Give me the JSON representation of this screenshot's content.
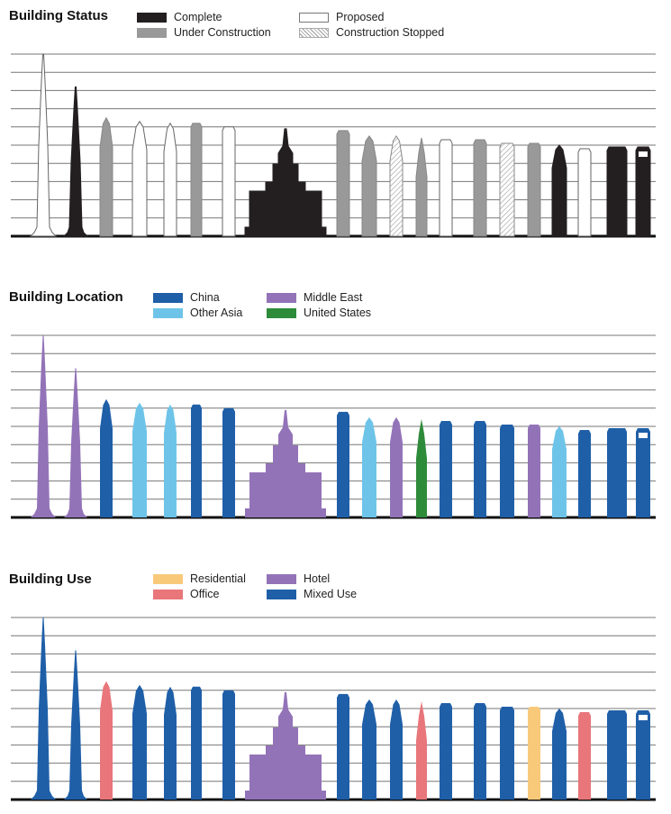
{
  "panels": [
    {
      "title": "Building Status",
      "legend": [
        {
          "label": "Complete",
          "color": "#231f20",
          "pattern": "solid"
        },
        {
          "label": "Under Construction",
          "color": "#999999",
          "pattern": "solid"
        },
        {
          "label": "Proposed",
          "color": "#ffffff",
          "pattern": "outline"
        },
        {
          "label": "Construction Stopped",
          "color": "#dddddd",
          "pattern": "hatch"
        }
      ]
    },
    {
      "title": "Building Location",
      "legend": [
        {
          "label": "China",
          "color": "#1f5fa8",
          "pattern": "solid"
        },
        {
          "label": "Other Asia",
          "color": "#6ec4e8",
          "pattern": "solid"
        },
        {
          "label": "Middle East",
          "color": "#9373b8",
          "pattern": "solid"
        },
        {
          "label": "United States",
          "color": "#2e8b3a",
          "pattern": "solid"
        }
      ]
    },
    {
      "title": "Building Use",
      "legend": [
        {
          "label": "Residential",
          "color": "#f9c97a",
          "pattern": "solid"
        },
        {
          "label": "Office",
          "color": "#e8767a",
          "pattern": "solid"
        },
        {
          "label": "Hotel",
          "color": "#9373b8",
          "pattern": "solid"
        },
        {
          "label": "Mixed Use",
          "color": "#1f5fa8",
          "pattern": "solid"
        }
      ]
    }
  ],
  "chart_data": {
    "type": "bar",
    "grid": true,
    "axis_labels": false,
    "x": [
      1,
      2,
      3,
      4,
      5,
      6,
      7,
      8,
      9,
      10,
      11,
      12,
      13,
      14,
      15,
      16,
      17,
      18,
      19,
      20
    ],
    "relative_heights": [
      1.0,
      0.82,
      0.65,
      0.63,
      0.62,
      0.62,
      0.6,
      0.59,
      0.58,
      0.55,
      0.55,
      0.54,
      0.53,
      0.53,
      0.51,
      0.51,
      0.5,
      0.48,
      0.49,
      0.49
    ],
    "categories": {
      "Building Status": [
        "Proposed",
        "Complete",
        "Under Construction",
        "Proposed",
        "Proposed",
        "Under Construction",
        "Proposed",
        "Complete",
        "Under Construction",
        "Under Construction",
        "Construction Stopped",
        "Under Construction",
        "Proposed",
        "Under Construction",
        "Construction Stopped",
        "Under Construction",
        "Complete",
        "Proposed",
        "Complete",
        "Complete"
      ],
      "Building Location": [
        "Middle East",
        "Middle East",
        "China",
        "Other Asia",
        "Other Asia",
        "China",
        "China",
        "Middle East",
        "China",
        "Other Asia",
        "Middle East",
        "United States",
        "China",
        "China",
        "China",
        "Middle East",
        "Other Asia",
        "China",
        "China",
        "China"
      ],
      "Building Use": [
        "Mixed Use",
        "Mixed Use",
        "Office",
        "Mixed Use",
        "Mixed Use",
        "Mixed Use",
        "Mixed Use",
        "Hotel",
        "Mixed Use",
        "Mixed Use",
        "Mixed Use",
        "Office",
        "Mixed Use",
        "Mixed Use",
        "Mixed Use",
        "Residential",
        "Mixed Use",
        "Office",
        "Mixed Use",
        "Mixed Use"
      ]
    }
  }
}
